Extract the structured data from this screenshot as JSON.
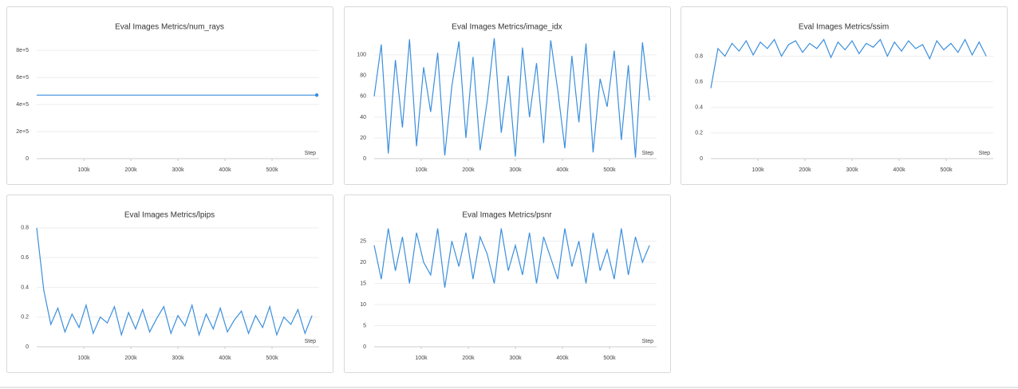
{
  "chart_data": [
    {
      "type": "line",
      "title": "Eval Images Metrics/num_rays",
      "x_label": "Step",
      "color": "#3b8fdd",
      "end_marker": true,
      "x": [
        0,
        595000
      ],
      "values": [
        470000,
        470000
      ],
      "xlim": [
        0,
        600000
      ],
      "ylim": [
        0,
        890000
      ],
      "xticks": [
        {
          "value": 100000,
          "label": "100k"
        },
        {
          "value": 200000,
          "label": "200k"
        },
        {
          "value": 300000,
          "label": "300k"
        },
        {
          "value": 400000,
          "label": "400k"
        },
        {
          "value": 500000,
          "label": "500k"
        }
      ],
      "yticks": [
        0,
        {
          "value": 200000,
          "label": "2e+5"
        },
        {
          "value": 400000,
          "label": "4e+5"
        },
        {
          "value": 600000,
          "label": "6e+5"
        },
        {
          "value": 800000,
          "label": "8e+5"
        }
      ],
      "grid": true
    },
    {
      "type": "line",
      "title": "Eval Images Metrics/image_idx",
      "x_label": "Step",
      "color": "#3b8fdd",
      "x": [
        0,
        15000,
        30000,
        45000,
        60000,
        75000,
        90000,
        105000,
        120000,
        135000,
        150000,
        165000,
        180000,
        195000,
        210000,
        225000,
        240000,
        255000,
        270000,
        285000,
        300000,
        315000,
        330000,
        345000,
        360000,
        375000,
        390000,
        405000,
        420000,
        435000,
        450000,
        465000,
        480000,
        495000,
        510000,
        525000,
        540000,
        555000,
        570000,
        585000
      ],
      "values": [
        60,
        110,
        5,
        95,
        30,
        115,
        12,
        88,
        45,
        102,
        3,
        70,
        113,
        20,
        98,
        8,
        55,
        116,
        25,
        80,
        2,
        107,
        40,
        92,
        15,
        114,
        66,
        10,
        99,
        35,
        111,
        6,
        77,
        50,
        104,
        18,
        90,
        1,
        112,
        56
      ],
      "xlim": [
        0,
        600000
      ],
      "ylim": [
        0,
        116
      ],
      "xticks": [
        {
          "value": 100000,
          "label": "100k"
        },
        {
          "value": 200000,
          "label": "200k"
        },
        {
          "value": 300000,
          "label": "300k"
        },
        {
          "value": 400000,
          "label": "400k"
        },
        {
          "value": 500000,
          "label": "500k"
        }
      ],
      "yticks": [
        0,
        20,
        40,
        60,
        80,
        100
      ],
      "grid": true
    },
    {
      "type": "line",
      "title": "Eval Images Metrics/ssim",
      "x_label": "Step",
      "color": "#3b8fdd",
      "x": [
        0,
        15000,
        30000,
        45000,
        60000,
        75000,
        90000,
        105000,
        120000,
        135000,
        150000,
        165000,
        180000,
        195000,
        210000,
        225000,
        240000,
        255000,
        270000,
        285000,
        300000,
        315000,
        330000,
        345000,
        360000,
        375000,
        390000,
        405000,
        420000,
        435000,
        450000,
        465000,
        480000,
        495000,
        510000,
        525000,
        540000,
        555000,
        570000,
        585000
      ],
      "values": [
        0.55,
        0.86,
        0.8,
        0.9,
        0.84,
        0.92,
        0.81,
        0.91,
        0.86,
        0.93,
        0.8,
        0.89,
        0.92,
        0.83,
        0.9,
        0.86,
        0.93,
        0.79,
        0.91,
        0.85,
        0.92,
        0.82,
        0.9,
        0.87,
        0.93,
        0.8,
        0.91,
        0.84,
        0.92,
        0.86,
        0.89,
        0.78,
        0.92,
        0.85,
        0.9,
        0.83,
        0.93,
        0.81,
        0.91,
        0.8
      ],
      "xlim": [
        0,
        600000
      ],
      "ylim": [
        0,
        0.94
      ],
      "xticks": [
        {
          "value": 100000,
          "label": "100k"
        },
        {
          "value": 200000,
          "label": "200k"
        },
        {
          "value": 300000,
          "label": "300k"
        },
        {
          "value": 400000,
          "label": "400k"
        },
        {
          "value": 500000,
          "label": "500k"
        }
      ],
      "yticks": [
        0,
        0.2,
        0.4,
        0.6,
        0.8
      ],
      "grid": true
    },
    {
      "type": "line",
      "title": "Eval Images Metrics/lpips",
      "x_label": "Step",
      "color": "#3b8fdd",
      "x": [
        0,
        15000,
        30000,
        45000,
        60000,
        75000,
        90000,
        105000,
        120000,
        135000,
        150000,
        165000,
        180000,
        195000,
        210000,
        225000,
        240000,
        255000,
        270000,
        285000,
        300000,
        315000,
        330000,
        345000,
        360000,
        375000,
        390000,
        405000,
        420000,
        435000,
        450000,
        465000,
        480000,
        495000,
        510000,
        525000,
        540000,
        555000,
        570000,
        585000
      ],
      "values": [
        0.8,
        0.38,
        0.15,
        0.26,
        0.1,
        0.22,
        0.13,
        0.28,
        0.09,
        0.2,
        0.16,
        0.27,
        0.08,
        0.23,
        0.12,
        0.25,
        0.1,
        0.19,
        0.27,
        0.09,
        0.21,
        0.14,
        0.28,
        0.08,
        0.22,
        0.12,
        0.26,
        0.1,
        0.18,
        0.24,
        0.09,
        0.21,
        0.13,
        0.27,
        0.08,
        0.2,
        0.15,
        0.25,
        0.09,
        0.21
      ],
      "xlim": [
        0,
        600000
      ],
      "ylim": [
        0,
        0.81
      ],
      "xticks": [
        {
          "value": 100000,
          "label": "100k"
        },
        {
          "value": 200000,
          "label": "200k"
        },
        {
          "value": 300000,
          "label": "300k"
        },
        {
          "value": 400000,
          "label": "400k"
        },
        {
          "value": 500000,
          "label": "500k"
        }
      ],
      "yticks": [
        0,
        0.2,
        0.4,
        0.6,
        0.8
      ],
      "grid": true
    },
    {
      "type": "line",
      "title": "Eval Images Metrics/psnr",
      "x_label": "Step",
      "color": "#3b8fdd",
      "x": [
        0,
        15000,
        30000,
        45000,
        60000,
        75000,
        90000,
        105000,
        120000,
        135000,
        150000,
        165000,
        180000,
        195000,
        210000,
        225000,
        240000,
        255000,
        270000,
        285000,
        300000,
        315000,
        330000,
        345000,
        360000,
        375000,
        390000,
        405000,
        420000,
        435000,
        450000,
        465000,
        480000,
        495000,
        510000,
        525000,
        540000,
        555000,
        570000,
        585000
      ],
      "values": [
        24,
        16,
        28,
        18,
        26,
        15,
        27,
        20,
        17,
        28,
        14,
        25,
        19,
        27,
        16,
        26,
        22,
        15,
        28,
        18,
        24,
        17,
        27,
        15,
        26,
        21,
        16,
        28,
        19,
        25,
        15,
        27,
        18,
        23,
        16,
        28,
        17,
        26,
        20,
        24
      ],
      "xlim": [
        0,
        600000
      ],
      "ylim": [
        0,
        28.5
      ],
      "xticks": [
        {
          "value": 100000,
          "label": "100k"
        },
        {
          "value": 200000,
          "label": "200k"
        },
        {
          "value": 300000,
          "label": "300k"
        },
        {
          "value": 400000,
          "label": "400k"
        },
        {
          "value": 500000,
          "label": "500k"
        }
      ],
      "yticks": [
        0,
        5,
        10,
        15,
        20,
        25
      ],
      "grid": true
    }
  ]
}
